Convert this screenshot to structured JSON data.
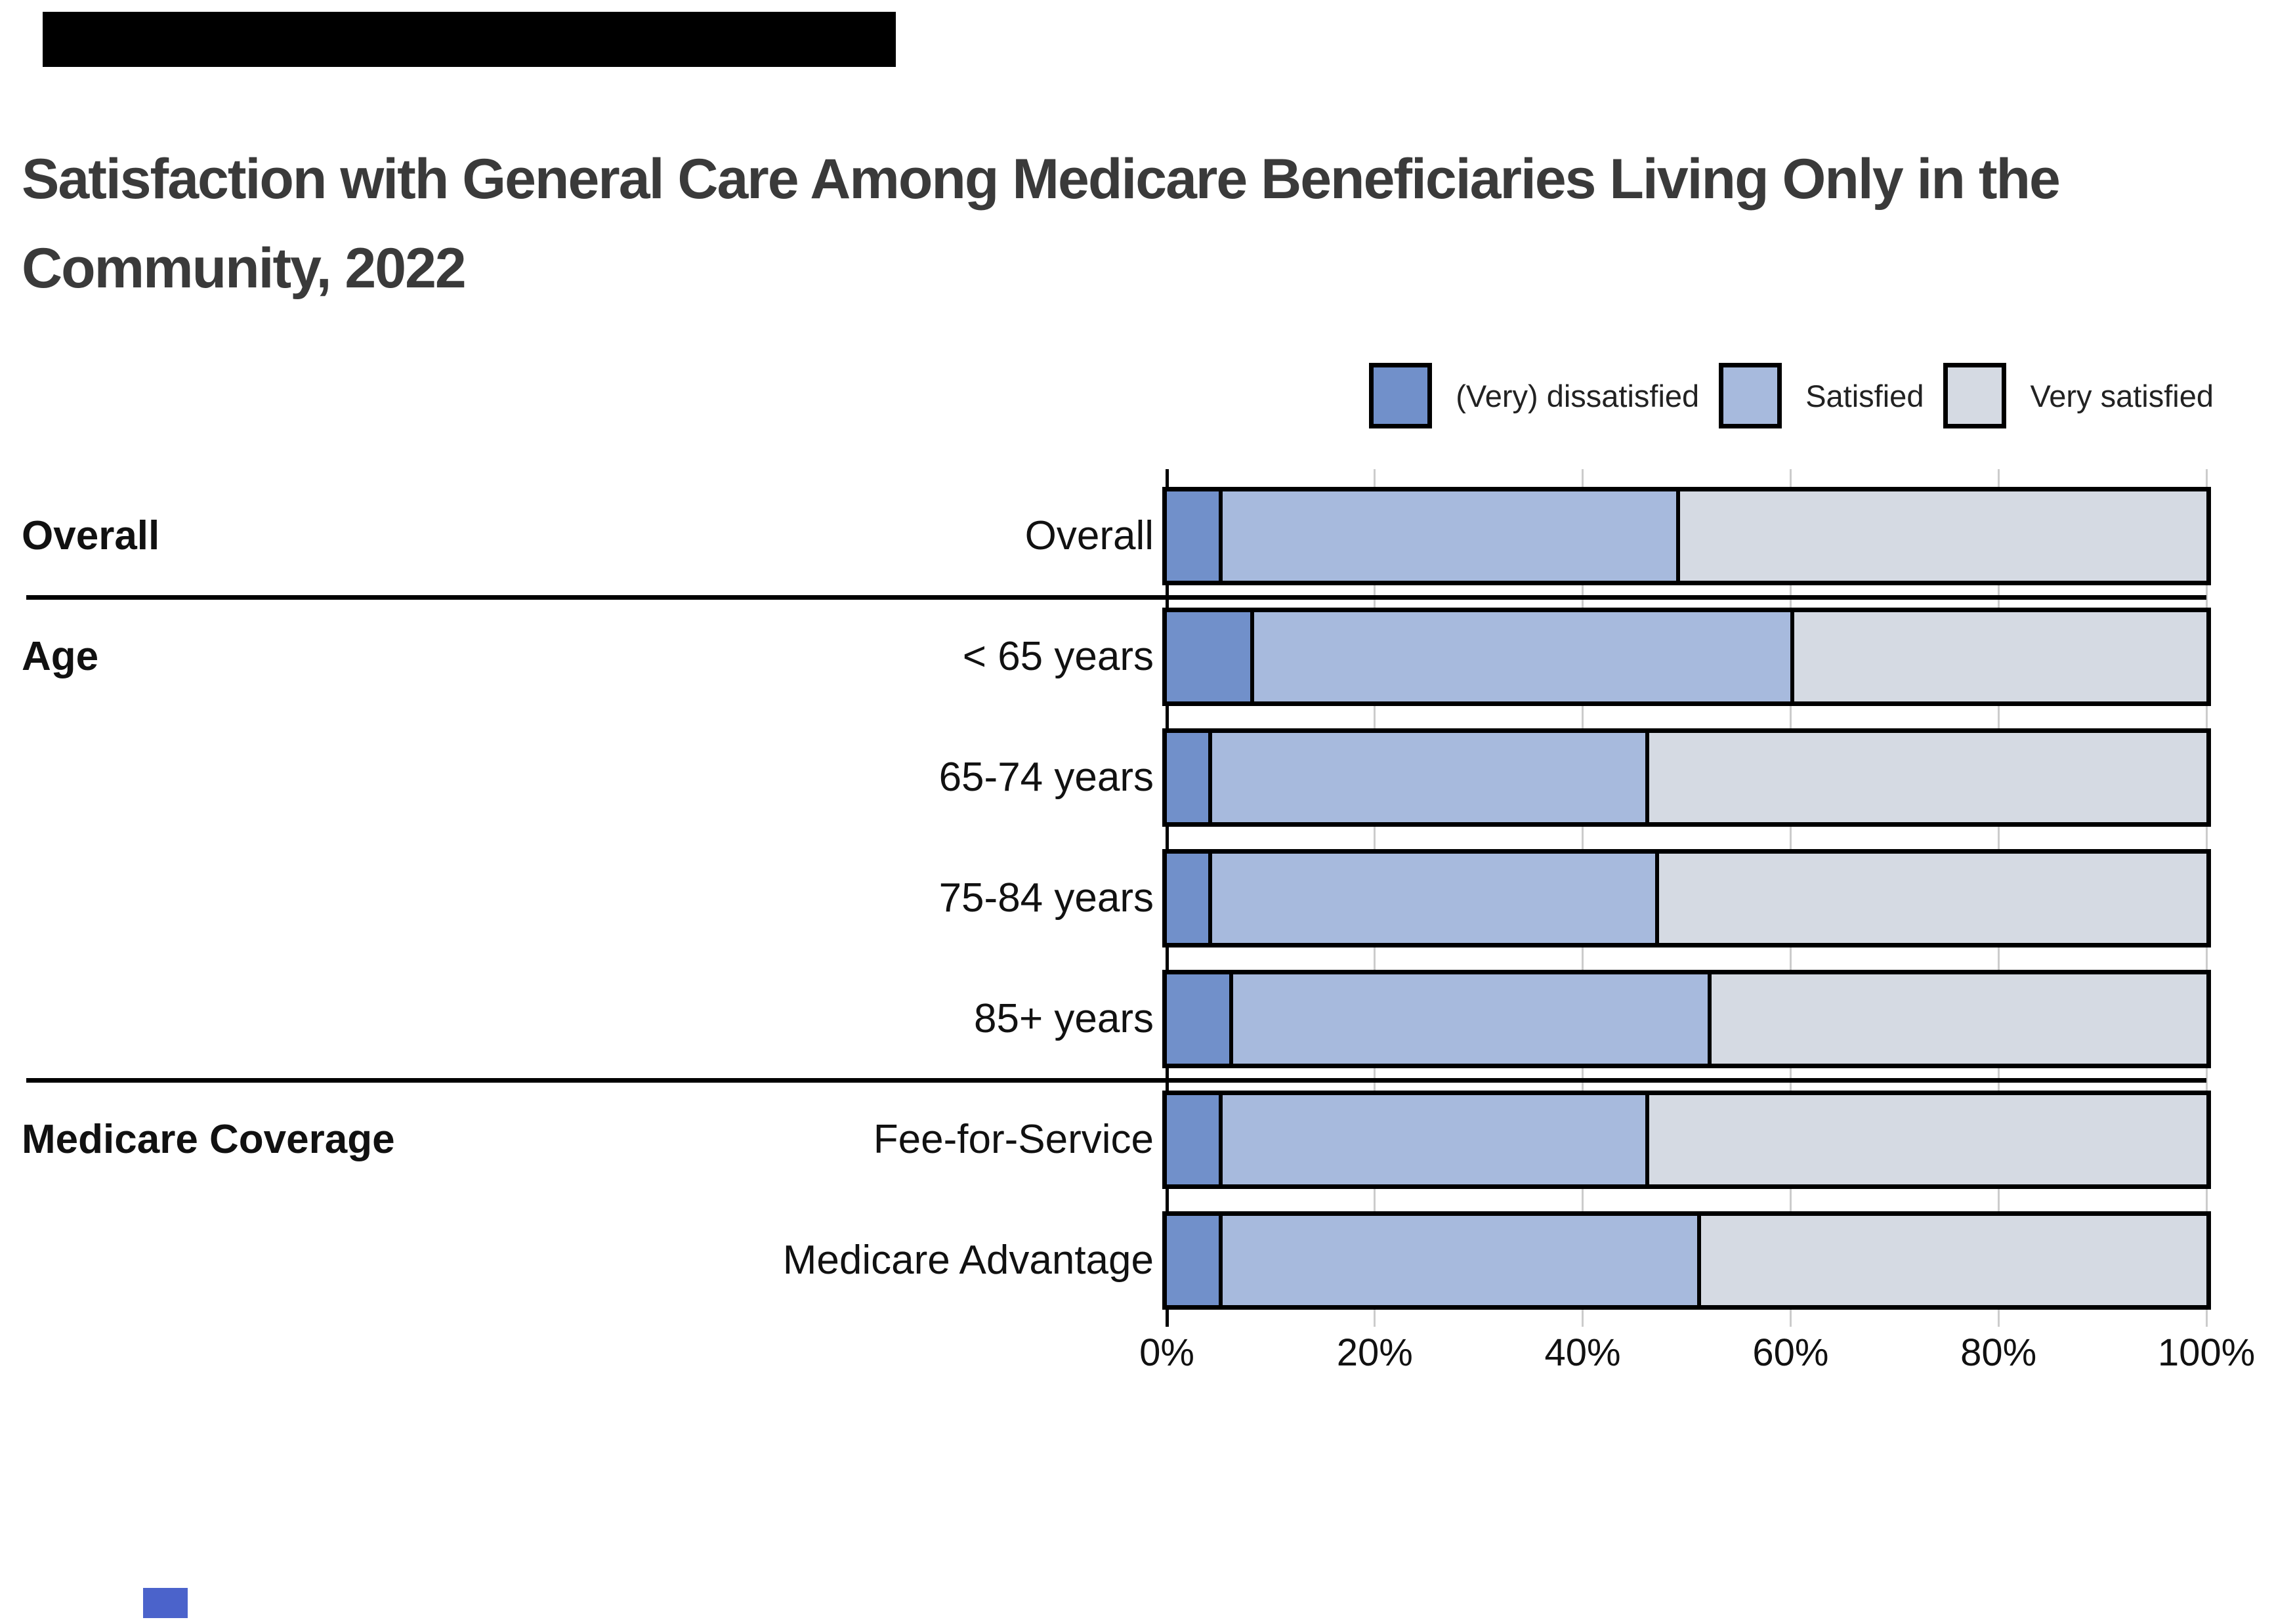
{
  "page": {
    "background": "#ffffff"
  },
  "artifacts": {
    "top_left_bar_color": "#000000",
    "bottom_left_chip_color": "#4b63cb"
  },
  "title": {
    "line1": "Satisfaction with General Care Among Medicare Beneficiaries Living Only in the",
    "line2": "Community, 2022",
    "color": "#3a3a3a"
  },
  "chart_data": {
    "type": "bar",
    "subtype": "horizontal-stacked-100pct",
    "title": "Satisfaction with General Care Among Medicare Beneficiaries Living Only in the Community, 2022",
    "legend_position": "top-right",
    "gridlines": true,
    "grid_color": "#cccccc",
    "axis_line_color": "#000000",
    "bar_border_color": "#000000",
    "series": [
      {
        "name": "(Very) dissatisfied",
        "color": "#7190CA"
      },
      {
        "name": "Satisfied",
        "color": "#A7BADD"
      },
      {
        "name": "Very satisfied",
        "color": "#D5DAE3"
      }
    ],
    "groups": [
      {
        "section": "Overall",
        "rows": [
          {
            "label": "Overall",
            "values": [
              5,
              44,
              51
            ]
          }
        ]
      },
      {
        "section": "Age",
        "rows": [
          {
            "label": "< 65 years",
            "values": [
              8,
              52,
              40
            ]
          },
          {
            "label": "65-74 years",
            "values": [
              4,
              42,
              54
            ]
          },
          {
            "label": "75-84 years",
            "values": [
              4,
              43,
              53
            ]
          },
          {
            "label": "85+ years",
            "values": [
              6,
              46,
              48
            ]
          }
        ]
      },
      {
        "section": "Medicare Coverage",
        "rows": [
          {
            "label": "Fee-for-Service",
            "values": [
              5,
              41,
              54
            ]
          },
          {
            "label": "Medicare Advantage",
            "values": [
              5,
              46,
              49
            ]
          }
        ]
      }
    ],
    "x_axis": {
      "min": 0,
      "max": 100,
      "unit": "%",
      "ticks": [
        "0%",
        "20%",
        "40%",
        "60%",
        "80%",
        "100%"
      ]
    }
  }
}
